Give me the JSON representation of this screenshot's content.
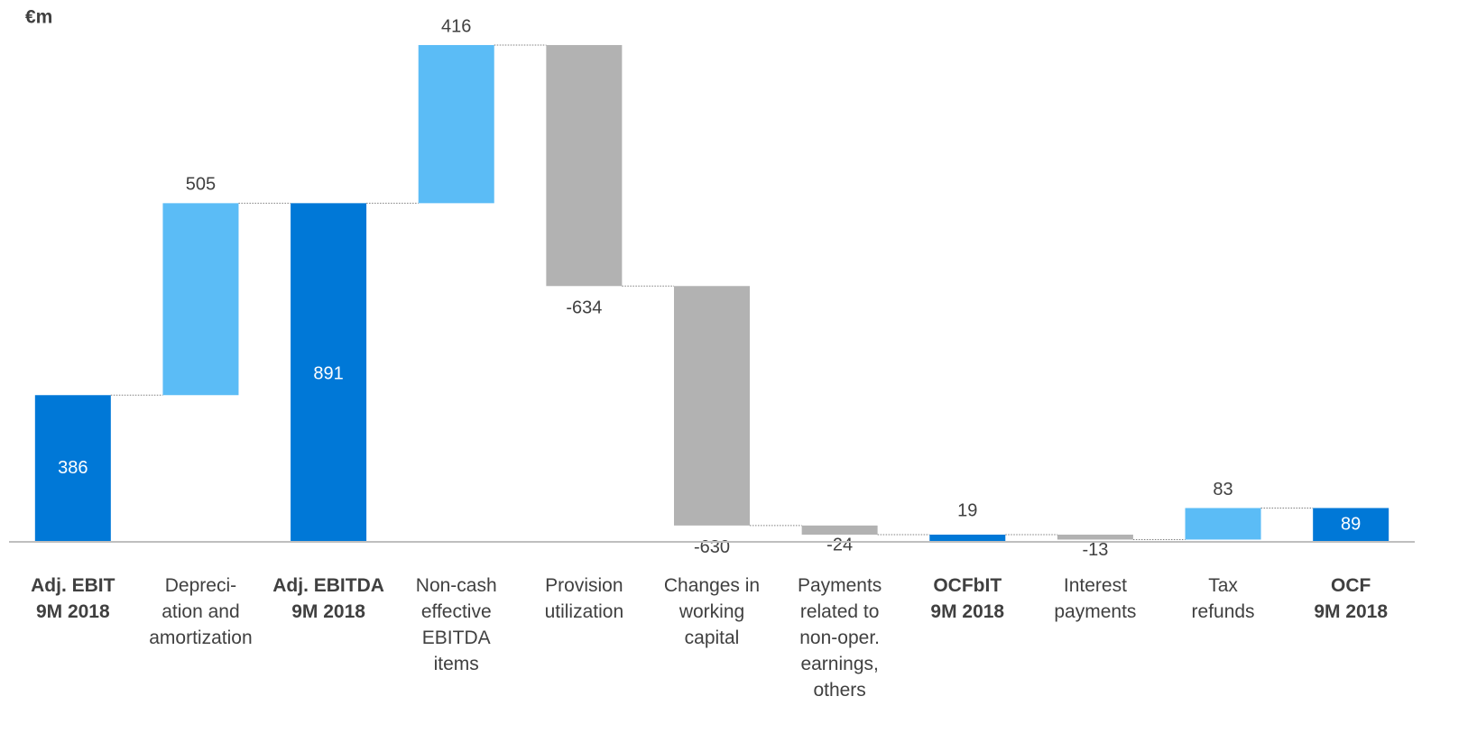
{
  "chart_data": {
    "type": "waterfall",
    "unit_label": "€m",
    "categories": [
      [
        "Adj. EBIT",
        "9M 2018"
      ],
      [
        "Depreci-",
        "ation and",
        "amortization"
      ],
      [
        "Adj. EBITDA",
        "9M 2018"
      ],
      [
        "Non-cash",
        "effective",
        "EBITDA",
        "items"
      ],
      [
        "Provision",
        "utilization"
      ],
      [
        "Changes in",
        "working",
        "capital"
      ],
      [
        "Payments",
        "related to",
        "non-oper.",
        "earnings,",
        "others"
      ],
      [
        "OCFbIT",
        "9M 2018"
      ],
      [
        "Interest",
        "payments"
      ],
      [
        "Tax",
        "refunds"
      ],
      [
        "OCF",
        "9M 2018"
      ]
    ],
    "values": [
      386,
      505,
      891,
      416,
      -634,
      -630,
      -24,
      19,
      -13,
      83,
      89
    ],
    "bar_types": [
      "total",
      "increase",
      "total",
      "increase",
      "decrease",
      "decrease",
      "decrease",
      "total",
      "decrease",
      "increase",
      "total"
    ],
    "colors": {
      "total": "#0078d7",
      "increase": "#5bbcf6",
      "decrease": "#b2b2b2"
    },
    "ylim": [
      0,
      1400
    ]
  }
}
